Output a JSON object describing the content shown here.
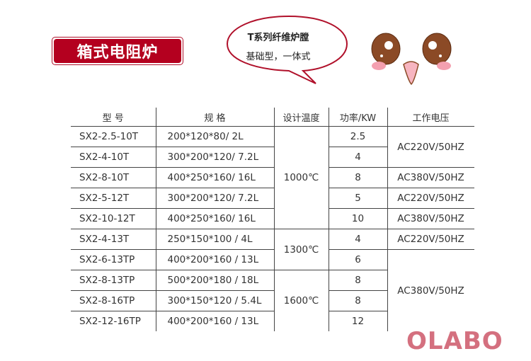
{
  "title": "箱式电阻炉",
  "bubble": {
    "line1": "T系列纤维炉膛",
    "line2": "基础型，一体式"
  },
  "table": {
    "headers": [
      "型  号",
      "规  格",
      "设计温度",
      "功率/KW",
      "工作电压"
    ],
    "rows": [
      {
        "model": "SX2-2.5-10T",
        "spec": "200*120*80/ 2L",
        "power": "2.5"
      },
      {
        "model": "SX2-4-10T",
        "spec": "300*200*120/ 7.2L",
        "power": "4"
      },
      {
        "model": "SX2-8-10T",
        "spec": "400*250*160/ 16L",
        "power": "8"
      },
      {
        "model": "SX2-5-12T",
        "spec": "300*200*120/ 7.2L",
        "power": "5"
      },
      {
        "model": "SX2-10-12T",
        "spec": "400*250*160/ 16L",
        "power": "10"
      },
      {
        "model": "SX2-4-13T",
        "spec": "250*150*100 / 4L",
        "power": "4"
      },
      {
        "model": "SX2-6-13TP",
        "spec": "400*200*160 / 13L",
        "power": "6"
      },
      {
        "model": "SX2-8-13TP",
        "spec": "500*200*180 / 18L",
        "power": "8"
      },
      {
        "model": "SX2-8-16TP",
        "spec": "300*150*120 / 5.4L",
        "power": "8"
      },
      {
        "model": "SX2-12-16TP",
        "spec": "400*200*160 / 13L",
        "power": "12"
      }
    ],
    "temps": [
      "1000℃",
      "1300℃",
      "1600℃"
    ],
    "voltages": [
      "AC220V/50HZ",
      "AC380V/50HZ",
      "AC220V/50HZ",
      "AC380V/50HZ",
      "AC220V/50HZ",
      "AC380V/50HZ"
    ]
  },
  "logo": "OLABO",
  "colors": {
    "brand_red": "#b4001f",
    "logo_pink": "#d4707f",
    "eye_brown": "#8b4a26"
  }
}
